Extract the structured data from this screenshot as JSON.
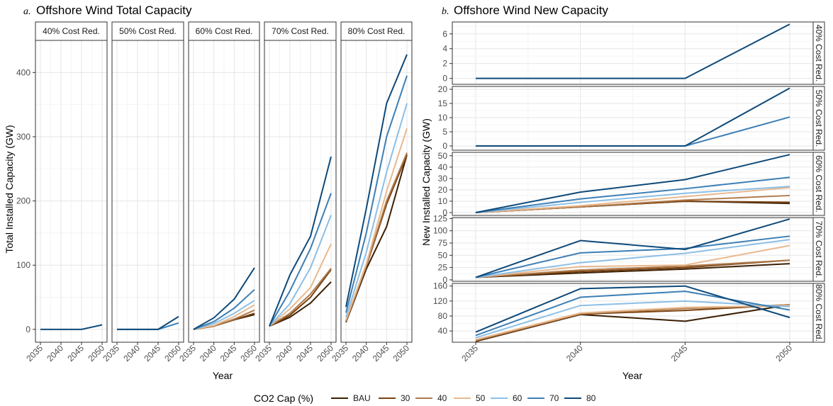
{
  "chart_data": [
    {
      "type": "line",
      "panel_label": "a.",
      "title": "Offshore Wind Total Capacity",
      "xlabel": "Year",
      "ylabel": "Total Installed Capacity (GW)",
      "x": [
        2035,
        2040,
        2045,
        2050
      ],
      "x_ticks": [
        "2035",
        "2040",
        "2045",
        "2050"
      ],
      "y_ticks": [
        "0",
        "100",
        "200",
        "300",
        "400"
      ],
      "ylim": [
        -20,
        450
      ],
      "facets": [
        {
          "label": "40% Cost Red.",
          "series": [
            {
              "name": "80",
              "values": [
                0,
                0,
                0,
                7
              ]
            }
          ]
        },
        {
          "label": "50% Cost Red.",
          "series": [
            {
              "name": "70",
              "values": [
                0,
                0,
                0,
                10
              ]
            },
            {
              "name": "80",
              "values": [
                0,
                0,
                0,
                20
              ]
            }
          ]
        },
        {
          "label": "60% Cost Red.",
          "series": [
            {
              "name": "BAU",
              "values": [
                0,
                5,
                15,
                23
              ]
            },
            {
              "name": "30",
              "values": [
                0,
                5,
                15,
                25
              ]
            },
            {
              "name": "40",
              "values": [
                0,
                5,
                16,
                30
              ]
            },
            {
              "name": "50",
              "values": [
                0,
                6,
                20,
                38
              ]
            },
            {
              "name": "60",
              "values": [
                0,
                9,
                25,
                45
              ]
            },
            {
              "name": "70",
              "values": [
                0,
                12,
                33,
                62
              ]
            },
            {
              "name": "80",
              "values": [
                0,
                18,
                47,
                96
              ]
            }
          ]
        },
        {
          "label": "70% Cost Red.",
          "series": [
            {
              "name": "BAU",
              "values": [
                5,
                19,
                41,
                74
              ]
            },
            {
              "name": "30",
              "values": [
                5,
                22,
                50,
                93
              ]
            },
            {
              "name": "40",
              "values": [
                5,
                25,
                55,
                95
              ]
            },
            {
              "name": "50",
              "values": [
                5,
                32,
                65,
                133
              ]
            },
            {
              "name": "60",
              "values": [
                5,
                40,
                96,
                178
              ]
            },
            {
              "name": "70",
              "values": [
                5,
                60,
                126,
                212
              ]
            },
            {
              "name": "80",
              "values": [
                5,
                85,
                145,
                269
              ]
            }
          ]
        },
        {
          "label": "80% Cost Red.",
          "series": [
            {
              "name": "BAU",
              "values": [
                11,
                94,
                160,
                272
              ]
            },
            {
              "name": "30",
              "values": [
                12,
                98,
                195,
                272
              ]
            },
            {
              "name": "40",
              "values": [
                12,
                99,
                200,
                275
              ]
            },
            {
              "name": "50",
              "values": [
                15,
                102,
                215,
                313
              ]
            },
            {
              "name": "60",
              "values": [
                19,
                120,
                245,
                352
              ]
            },
            {
              "name": "70",
              "values": [
                26,
                150,
                300,
                395
              ]
            },
            {
              "name": "80",
              "values": [
                35,
                188,
                352,
                428
              ]
            }
          ]
        }
      ]
    },
    {
      "type": "line",
      "panel_label": "b.",
      "title": "Offshore Wind New Capacity",
      "xlabel": "Year",
      "ylabel": "New Installed Capacity (GW)",
      "x": [
        2035,
        2040,
        2045,
        2050
      ],
      "x_ticks": [
        "2035",
        "2040",
        "2045",
        "2050"
      ],
      "facets": [
        {
          "label": "40% Cost Red.",
          "ylim": [
            -0.8,
            7.6
          ],
          "y_ticks": [
            0,
            2,
            4,
            6
          ],
          "series": [
            {
              "name": "80",
              "values": [
                0,
                0,
                0,
                7.3
              ]
            }
          ]
        },
        {
          "label": "50% Cost Red.",
          "ylim": [
            -1.5,
            21
          ],
          "y_ticks": [
            0,
            5,
            10,
            15,
            20
          ],
          "series": [
            {
              "name": "70",
              "values": [
                0,
                0,
                0,
                10.2
              ]
            },
            {
              "name": "80",
              "values": [
                0,
                0,
                0,
                20.4
              ]
            }
          ]
        },
        {
          "label": "60% Cost Red.",
          "ylim": [
            -2.5,
            53
          ],
          "y_ticks": [
            0,
            10,
            20,
            30,
            40,
            50
          ],
          "series": [
            {
              "name": "BAU",
              "values": [
                0,
                5,
                10,
                8
              ]
            },
            {
              "name": "30",
              "values": [
                0,
                5,
                10,
                9
              ]
            },
            {
              "name": "40",
              "values": [
                0,
                5,
                11,
                15
              ]
            },
            {
              "name": "50",
              "values": [
                0,
                6,
                14,
                22
              ]
            },
            {
              "name": "60",
              "values": [
                0,
                9,
                17,
                23
              ]
            },
            {
              "name": "70",
              "values": [
                0,
                12,
                21,
                31
              ]
            },
            {
              "name": "80",
              "values": [
                0,
                18,
                29,
                51
              ]
            }
          ]
        },
        {
          "label": "70% Cost Red.",
          "ylim": [
            -3,
            127
          ],
          "y_ticks": [
            0,
            25,
            50,
            75,
            100,
            125
          ],
          "series": [
            {
              "name": "BAU",
              "values": [
                5,
                14,
                22,
                33
              ]
            },
            {
              "name": "30",
              "values": [
                5,
                17,
                25,
                40
              ]
            },
            {
              "name": "40",
              "values": [
                5,
                20,
                28,
                40
              ]
            },
            {
              "name": "50",
              "values": [
                5,
                27,
                30,
                70
              ]
            },
            {
              "name": "60",
              "values": [
                5,
                35,
                54,
                82
              ]
            },
            {
              "name": "70",
              "values": [
                5,
                55,
                64,
                89
              ]
            },
            {
              "name": "80",
              "values": [
                5,
                80,
                62,
                124
              ]
            }
          ]
        },
        {
          "label": "80% Cost Red.",
          "ylim": [
            10,
            167
          ],
          "y_ticks": [
            40,
            80,
            120,
            160
          ],
          "series": [
            {
              "name": "BAU",
              "values": [
                12,
                84,
                66,
                110
              ]
            },
            {
              "name": "30",
              "values": [
                13,
                85,
                95,
                110
              ]
            },
            {
              "name": "40",
              "values": [
                15,
                86,
                100,
                110
              ]
            },
            {
              "name": "50",
              "values": [
                17,
                88,
                103,
                108
              ]
            },
            {
              "name": "60",
              "values": [
                22,
                108,
                120,
                105
              ]
            },
            {
              "name": "70",
              "values": [
                28,
                130,
                146,
                96
              ]
            },
            {
              "name": "80",
              "values": [
                37,
                153,
                160,
                76
              ]
            }
          ]
        }
      ]
    }
  ],
  "legend": {
    "title": "CO2 Cap (%)",
    "items": [
      {
        "name": "BAU",
        "color": "#3b1f03"
      },
      {
        "name": "30",
        "color": "#7a4212"
      },
      {
        "name": "40",
        "color": "#b07a4a"
      },
      {
        "name": "50",
        "color": "#e8b98e"
      },
      {
        "name": "60",
        "color": "#8cbfe6"
      },
      {
        "name": "70",
        "color": "#3c7fb6"
      },
      {
        "name": "80",
        "color": "#0e4a7a"
      }
    ]
  }
}
